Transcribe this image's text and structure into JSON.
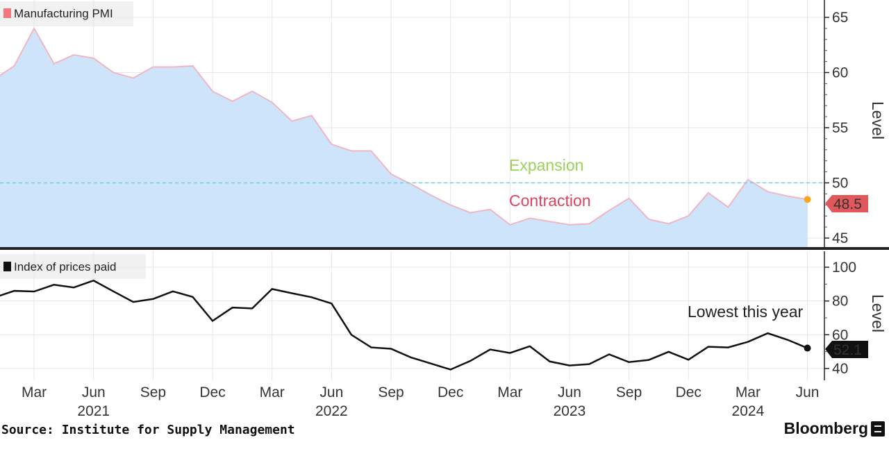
{
  "chart_data": [
    {
      "type": "area",
      "legend": "Manufacturing PMI",
      "ylabel": "Level",
      "ylim": [
        44,
        67
      ],
      "yticks": [
        45,
        50,
        55,
        60,
        65
      ],
      "x": [
        "2021-01",
        "2021-02",
        "2021-03",
        "2021-04",
        "2021-05",
        "2021-06",
        "2021-07",
        "2021-08",
        "2021-09",
        "2021-10",
        "2021-11",
        "2021-12",
        "2022-01",
        "2022-02",
        "2022-03",
        "2022-04",
        "2022-05",
        "2022-06",
        "2022-07",
        "2022-08",
        "2022-09",
        "2022-10",
        "2022-11",
        "2022-12",
        "2023-01",
        "2023-02",
        "2023-03",
        "2023-04",
        "2023-05",
        "2023-06",
        "2023-07",
        "2023-08",
        "2023-09",
        "2023-10",
        "2023-11",
        "2023-12",
        "2024-01",
        "2024-02",
        "2024-03",
        "2024-04",
        "2024-05",
        "2024-06"
      ],
      "values": [
        59.4,
        60.6,
        64.0,
        60.8,
        61.6,
        61.3,
        60.0,
        59.5,
        60.5,
        60.5,
        60.6,
        58.3,
        57.4,
        58.3,
        57.3,
        55.6,
        56.1,
        53.5,
        52.9,
        52.9,
        50.8,
        49.9,
        48.9,
        48.0,
        47.3,
        47.6,
        46.2,
        46.8,
        46.5,
        46.2,
        46.3,
        47.5,
        48.6,
        46.7,
        46.3,
        47.0,
        49.1,
        47.8,
        50.3,
        49.2,
        48.8,
        48.5
      ],
      "colors": {
        "line": "#f2b5c2",
        "fill": "#cde4fb",
        "last_dot": "#f5a623",
        "last_label_bg": "#e0575c"
      },
      "reference_line": {
        "value": 50,
        "color": "#6cd3df"
      },
      "annotations": [
        {
          "text": "Expansion",
          "color": "#9bd25a"
        },
        {
          "text": "Contraction",
          "color": "#e2425c"
        }
      ],
      "last_value_label": "48.5"
    },
    {
      "type": "line",
      "legend": "Index of prices paid",
      "ylabel": "Level",
      "ylim": [
        35,
        105
      ],
      "yticks": [
        40,
        60,
        80,
        100
      ],
      "x": [
        "2021-01",
        "2021-02",
        "2021-03",
        "2021-04",
        "2021-05",
        "2021-06",
        "2021-07",
        "2021-08",
        "2021-09",
        "2021-10",
        "2021-11",
        "2021-12",
        "2022-01",
        "2022-02",
        "2022-03",
        "2022-04",
        "2022-05",
        "2022-06",
        "2022-07",
        "2022-08",
        "2022-09",
        "2022-10",
        "2022-11",
        "2022-12",
        "2023-01",
        "2023-02",
        "2023-03",
        "2023-04",
        "2023-05",
        "2023-06",
        "2023-07",
        "2023-08",
        "2023-09",
        "2023-10",
        "2023-11",
        "2023-12",
        "2024-01",
        "2024-02",
        "2024-03",
        "2024-04",
        "2024-05",
        "2024-06"
      ],
      "values": [
        82.1,
        86.0,
        85.6,
        89.6,
        88.0,
        92.1,
        85.7,
        79.4,
        81.2,
        85.7,
        82.4,
        68.2,
        76.1,
        75.6,
        87.1,
        84.6,
        82.2,
        78.5,
        60.0,
        52.5,
        51.7,
        46.6,
        43.0,
        39.4,
        44.5,
        51.3,
        49.2,
        53.2,
        44.2,
        41.8,
        42.6,
        48.4,
        43.8,
        45.1,
        49.9,
        45.2,
        52.9,
        52.5,
        55.8,
        60.9,
        57.0,
        52.1
      ],
      "colors": {
        "line": "#111111"
      },
      "annotations": [
        {
          "text": "Lowest this year",
          "color": "#222222"
        }
      ],
      "last_value_label": "52.1"
    }
  ],
  "x_axis": {
    "month_labels": [
      "Mar",
      "Jun",
      "Sep",
      "Dec",
      "Mar",
      "Jun",
      "Sep",
      "Dec",
      "Mar",
      "Jun",
      "Sep",
      "Dec",
      "Mar",
      "Jun"
    ],
    "month_positions": [
      "2021-03",
      "2021-06",
      "2021-09",
      "2021-12",
      "2022-03",
      "2022-06",
      "2022-09",
      "2022-12",
      "2023-03",
      "2023-06",
      "2023-09",
      "2023-12",
      "2024-03",
      "2024-06"
    ],
    "year_labels": [
      "2021",
      "2022",
      "2023",
      "2024"
    ],
    "year_positions": [
      "2021-06",
      "2022-06",
      "2023-06",
      "2024-03"
    ]
  },
  "footer": {
    "source": "Source: Institute for Supply Management",
    "brand": "Bloomberg"
  }
}
